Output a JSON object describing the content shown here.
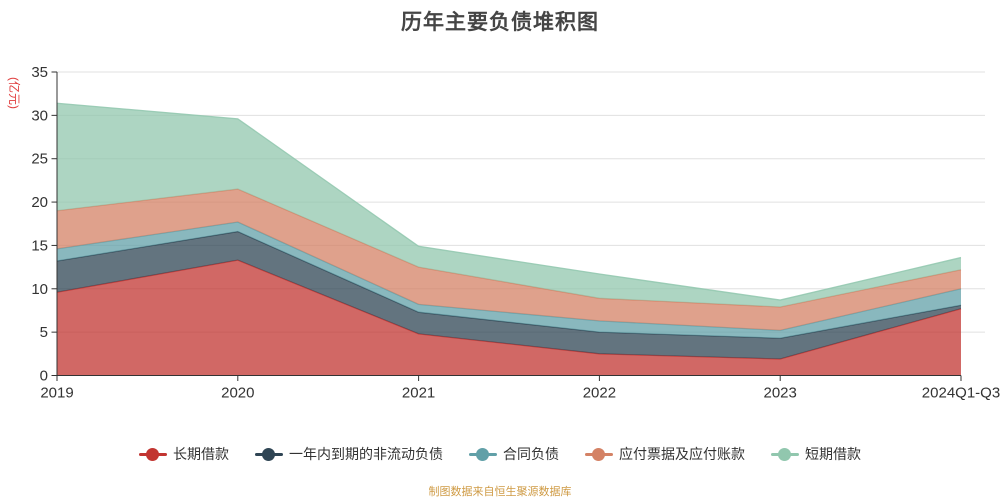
{
  "title": "历年主要负债堆积图",
  "y_axis_name": "(亿元)",
  "footer": "制图数据来自恒生聚源数据库",
  "colors": {
    "background": "#ffffff",
    "title_text": "#454545",
    "axis_text": "#333333",
    "axis_line": "#333333",
    "grid_line": "#e0e0e0",
    "y_axis_name_text": "#e03c3c",
    "footer_text": "#cf9b45"
  },
  "chart_data": {
    "type": "area",
    "stacked": true,
    "grid": true,
    "legend_position": "bottom",
    "area_opacity": 0.75,
    "categories": [
      "2019",
      "2020",
      "2021",
      "2022",
      "2023",
      "2024Q1-Q3"
    ],
    "series": [
      {
        "name": "长期借款",
        "color": "#c23531",
        "values": [
          9.6,
          13.3,
          4.8,
          2.5,
          1.9,
          7.7
        ]
      },
      {
        "name": "一年内到期的非流动负债",
        "color": "#2f4554",
        "values": [
          3.6,
          3.3,
          2.5,
          2.5,
          2.4,
          0.4
        ]
      },
      {
        "name": "合同负债",
        "color": "#61a0a8",
        "values": [
          1.4,
          1.1,
          0.9,
          1.3,
          0.9,
          1.9
        ]
      },
      {
        "name": "应付票据及应付账款",
        "color": "#d48265",
        "values": [
          4.4,
          3.8,
          4.3,
          2.6,
          2.7,
          2.2
        ]
      },
      {
        "name": "短期借款",
        "color": "#91c7ae",
        "values": [
          12.4,
          8.1,
          2.4,
          2.8,
          0.8,
          1.4
        ]
      }
    ],
    "xlabel": "",
    "ylabel": "(亿元)",
    "ylim": [
      0,
      35
    ],
    "y_ticks": [
      0,
      5,
      10,
      15,
      20,
      25,
      30,
      35
    ]
  }
}
